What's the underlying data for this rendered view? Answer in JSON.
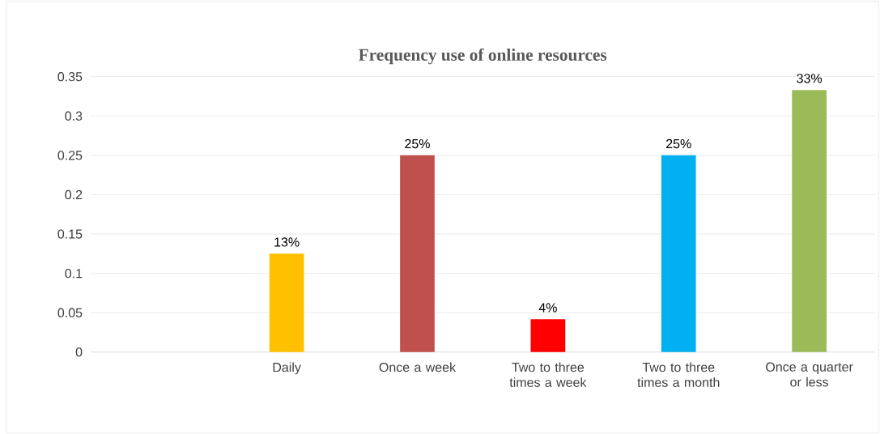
{
  "chart_data": {
    "type": "bar",
    "title": "Frequency use of online resources",
    "categories": [
      null,
      "Daily",
      "Once a week",
      "Two to three times a week",
      "Two to three times a month",
      "Once a quarter or less"
    ],
    "values": [
      null,
      0.125,
      0.25,
      0.0417,
      0.25,
      0.333
    ],
    "colors": [
      null,
      "#ffc000",
      "#c0504d",
      "#ff0000",
      "#00b0f0",
      "#9bbb59"
    ],
    "value_labels": [
      null,
      "13%",
      "25%",
      "4%",
      "25%",
      "33%"
    ],
    "ylim": [
      0,
      0.35
    ],
    "yticks": [
      0,
      0.05,
      0.1,
      0.15,
      0.2,
      0.25,
      0.3,
      0.35
    ],
    "grid": "y"
  }
}
